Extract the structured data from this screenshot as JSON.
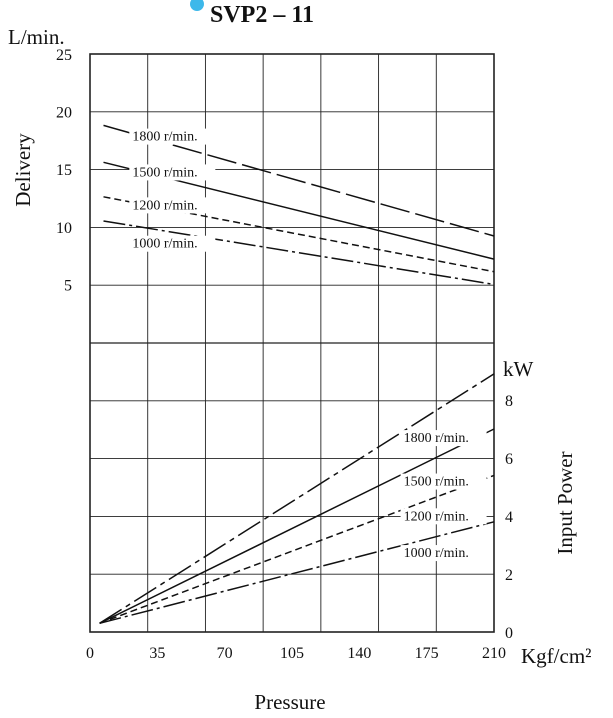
{
  "chart_data": {
    "type": "line",
    "title": "SVP2 – 11",
    "title_bullet_color": "#3db8ea",
    "grid": true,
    "xlabel": "Pressure",
    "x_unit": "Kgf/cm²",
    "x_ticks": [
      "0",
      "35",
      "70",
      "105",
      "140",
      "175",
      "210"
    ],
    "xlim": [
      0,
      210
    ],
    "delivery_panel": {
      "ylabel": "Delivery",
      "y_unit": "L/min.",
      "y_ticks": [
        "5",
        "10",
        "15",
        "20",
        "25"
      ],
      "ylim": [
        0,
        25
      ],
      "series": [
        {
          "name": "1800 r/min.",
          "style": "long-dash",
          "x": [
            7,
            210
          ],
          "y": [
            18.8,
            9.2
          ]
        },
        {
          "name": "1500 r/min.",
          "style": "solid",
          "x": [
            7,
            210
          ],
          "y": [
            15.6,
            7.2
          ]
        },
        {
          "name": "1200 r/min.",
          "style": "short-dash",
          "x": [
            7,
            210
          ],
          "y": [
            12.6,
            6.1
          ]
        },
        {
          "name": "1000 r/min.",
          "style": "dash-dot",
          "x": [
            7,
            210
          ],
          "y": [
            10.5,
            5.0
          ]
        }
      ]
    },
    "power_panel": {
      "ylabel": "Input Power",
      "y_unit": "kW",
      "y_ticks": [
        "0",
        "2",
        "4",
        "6",
        "8"
      ],
      "ylim": [
        0,
        10
      ],
      "series": [
        {
          "name": "1800 r/min.",
          "style": "long-dash-dot",
          "x": [
            5,
            210
          ],
          "y": [
            0.3,
            8.9
          ]
        },
        {
          "name": "1500 r/min.",
          "style": "solid",
          "x": [
            5,
            210
          ],
          "y": [
            0.3,
            7.0
          ]
        },
        {
          "name": "1200 r/min.",
          "style": "short-dash",
          "x": [
            5,
            210
          ],
          "y": [
            0.3,
            5.4
          ]
        },
        {
          "name": "1000 r/min.",
          "style": "dash-dot",
          "x": [
            5,
            210
          ],
          "y": [
            0.3,
            3.8
          ]
        }
      ]
    }
  }
}
